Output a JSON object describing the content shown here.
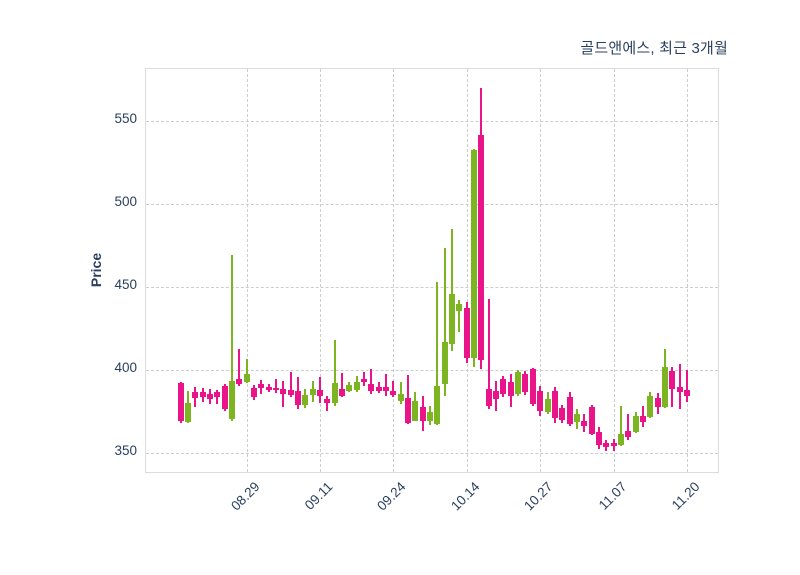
{
  "title": "골드앤에스, 최근 3개월",
  "y_axis": {
    "label": "Price",
    "ticks": [
      550,
      500,
      450,
      400,
      350
    ]
  },
  "x_axis": {
    "ticks": [
      {
        "index": 9,
        "label": "08.29"
      },
      {
        "index": 19,
        "label": "09.11"
      },
      {
        "index": 29,
        "label": "09.24"
      },
      {
        "index": 39,
        "label": "10.14"
      },
      {
        "index": 49,
        "label": "10.27"
      },
      {
        "index": 59,
        "label": "11.07"
      },
      {
        "index": 69,
        "label": "11.20"
      }
    ]
  },
  "colors": {
    "up": "#7cb521",
    "down": "#e91489",
    "grid": "#cdcdcd",
    "plot_border": "#dcdcdc",
    "text": "#2a3f5f",
    "background": "#ffffff"
  },
  "chart_data": {
    "type": "candlestick",
    "title": "골드앤에스, 최근 3개월",
    "xlabel": "",
    "ylabel": "Price",
    "ylim": [
      337,
      581
    ],
    "grid": "dashed",
    "up_color_rule": "close > open is green (up), close < open is pink (down)",
    "ohlc_order": [
      "open",
      "high",
      "low",
      "close"
    ],
    "x_tick_positions": [
      9,
      19,
      29,
      39,
      49,
      59,
      69
    ],
    "x_tick_labels": [
      "08.29",
      "09.11",
      "09.24",
      "10.14",
      "10.27",
      "11.07",
      "11.20"
    ],
    "candles": [
      [
        392,
        392.5,
        368,
        369
      ],
      [
        368.5,
        387.5,
        368,
        380
      ],
      [
        386.5,
        390,
        377.5,
        383
      ],
      [
        386.5,
        389,
        380.5,
        383.5
      ],
      [
        385.5,
        388.5,
        379.5,
        382.5
      ],
      [
        386.5,
        388,
        379.5,
        384
      ],
      [
        390.5,
        391.5,
        375.5,
        376.5
      ],
      [
        370.5,
        469,
        369.5,
        393.5
      ],
      [
        394.5,
        412.5,
        390.5,
        391.5
      ],
      [
        393,
        406.5,
        392,
        397.5
      ],
      [
        389,
        391,
        382,
        384
      ],
      [
        391.5,
        394,
        385.5,
        389
      ],
      [
        390,
        391.5,
        386.5,
        388
      ],
      [
        389,
        394.5,
        386,
        388
      ],
      [
        388.5,
        393.5,
        377.5,
        385.5
      ],
      [
        388,
        399,
        383.5,
        385
      ],
      [
        387.5,
        395.5,
        376.5,
        379
      ],
      [
        379,
        388.5,
        377,
        385
      ],
      [
        385,
        393.5,
        381,
        388.5
      ],
      [
        388,
        396,
        380,
        384.5
      ],
      [
        382.5,
        384.5,
        375.5,
        380
      ],
      [
        380,
        418,
        378.5,
        392
      ],
      [
        388.5,
        398,
        384,
        384.5
      ],
      [
        387.5,
        392.5,
        386.5,
        391
      ],
      [
        388,
        396.5,
        387,
        392.5
      ],
      [
        394.5,
        398.5,
        390.5,
        392.5
      ],
      [
        391.5,
        400.5,
        385.5,
        387.5
      ],
      [
        390,
        393,
        386,
        387.5
      ],
      [
        390,
        397.5,
        384.5,
        387.5
      ],
      [
        387.5,
        393.5,
        383.5,
        385
      ],
      [
        381.5,
        393,
        379.5,
        385.5
      ],
      [
        383,
        397,
        367.5,
        368
      ],
      [
        369.5,
        387,
        369,
        381.5
      ],
      [
        377.5,
        384.5,
        363.5,
        369.5
      ],
      [
        369.5,
        378.5,
        367,
        374.5
      ],
      [
        367.5,
        453,
        367,
        390.5
      ],
      [
        391.5,
        473.5,
        384.5,
        417
      ],
      [
        415.5,
        485,
        411.5,
        445.5
      ],
      [
        435.5,
        442,
        423,
        439.5
      ],
      [
        437.5,
        441,
        404,
        407.5
      ],
      [
        407.5,
        533,
        402,
        532.5
      ],
      [
        541.5,
        570,
        400.5,
        406
      ],
      [
        388.5,
        443,
        376.5,
        378.5
      ],
      [
        387.5,
        393.5,
        375.5,
        382.5
      ],
      [
        394.5,
        396.5,
        384,
        385.5
      ],
      [
        392.5,
        397.5,
        377.5,
        384.5
      ],
      [
        385.5,
        400,
        384.5,
        398.5
      ],
      [
        397.5,
        399.5,
        385,
        386.5
      ],
      [
        400.5,
        401.5,
        378.5,
        379.5
      ],
      [
        387.5,
        390.5,
        372.5,
        375.5
      ],
      [
        374.5,
        386.5,
        373.5,
        382.5
      ],
      [
        387.5,
        390,
        368,
        371
      ],
      [
        377,
        379,
        368,
        370
      ],
      [
        383.5,
        387,
        366.5,
        367.5
      ],
      [
        368.5,
        376.5,
        364.5,
        373.5
      ],
      [
        369.5,
        373.5,
        362.5,
        366
      ],
      [
        377.5,
        379,
        361,
        361.5
      ],
      [
        362.5,
        365.5,
        352.5,
        355
      ],
      [
        356,
        358,
        351.5,
        353.5
      ],
      [
        356,
        358.5,
        351,
        354
      ],
      [
        355,
        378.5,
        354,
        361.5
      ],
      [
        363.5,
        373.5,
        358,
        359.5
      ],
      [
        362.5,
        374.5,
        362,
        372.5
      ],
      [
        372,
        378.5,
        365.5,
        368.5
      ],
      [
        371.5,
        387,
        371,
        384.5
      ],
      [
        383,
        386,
        373.5,
        377.5
      ],
      [
        378,
        412.5,
        377,
        402
      ],
      [
        399.5,
        402,
        377.5,
        388.5
      ],
      [
        389.5,
        403.5,
        376.5,
        387
      ],
      [
        388,
        400,
        381,
        384.5
      ]
    ]
  }
}
